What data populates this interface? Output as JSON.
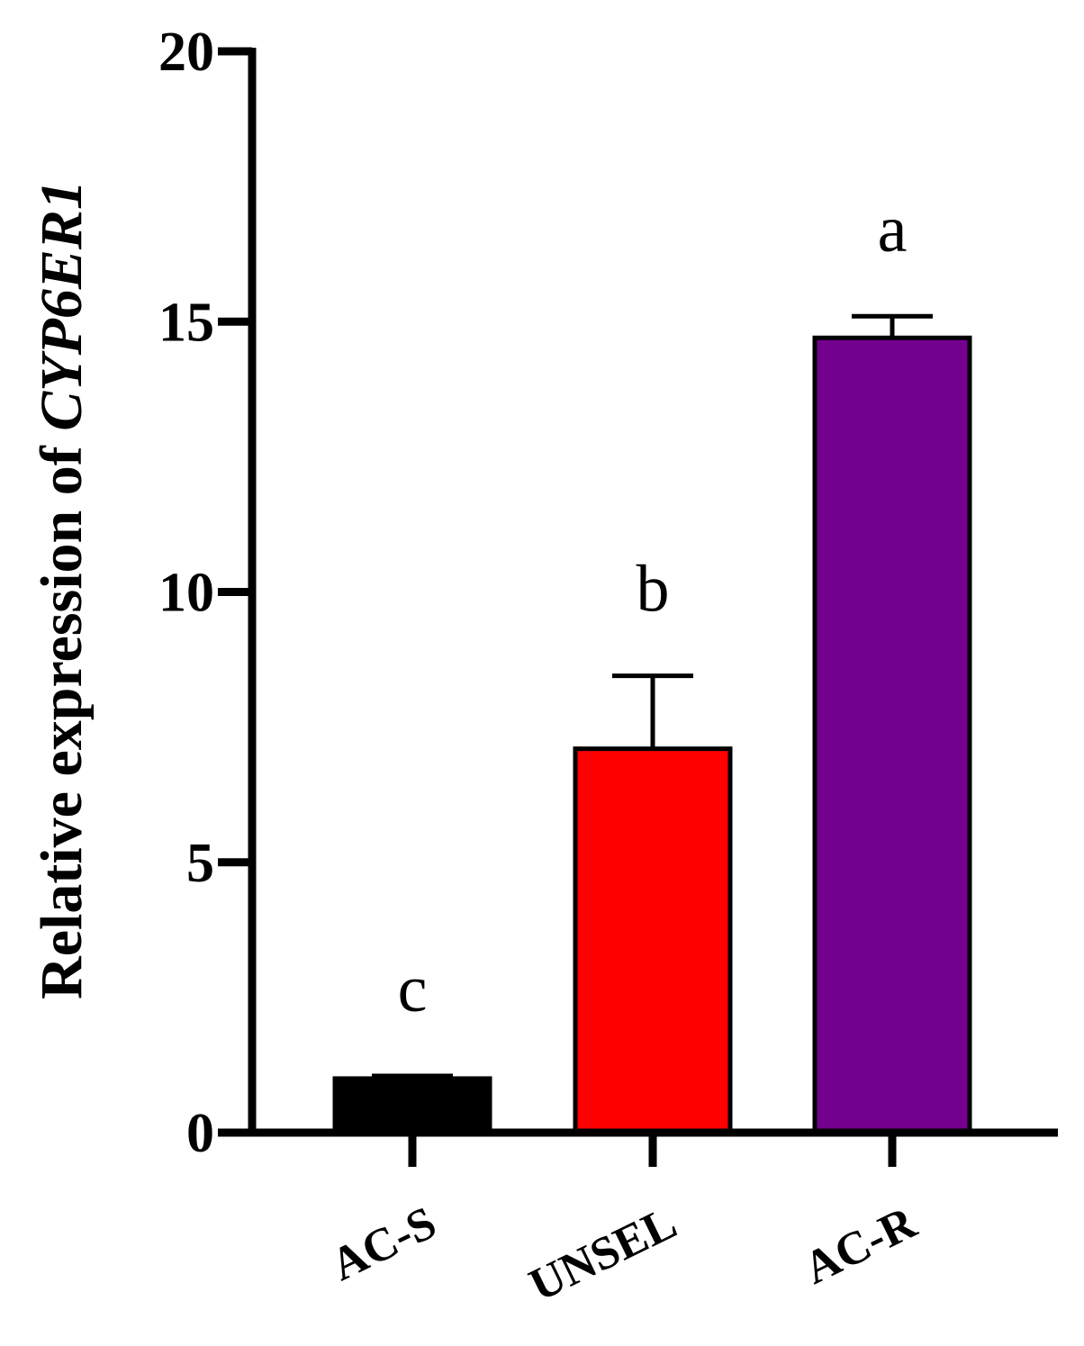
{
  "chart_data": {
    "type": "bar",
    "title": "",
    "xlabel": "",
    "ylabel": {
      "prefix": "Relative expression of ",
      "gene": "CYP6ER1"
    },
    "ylim": [
      0,
      20
    ],
    "yticks": [
      0,
      5,
      10,
      15,
      20
    ],
    "grid": false,
    "legend": "none",
    "categories": [
      "AC-S",
      "UNSEL",
      "AC-R"
    ],
    "values": [
      1.0,
      7.1,
      14.7
    ],
    "errors": [
      0.05,
      1.35,
      0.4
    ],
    "significance": [
      "c",
      "b",
      "a"
    ],
    "colors": [
      "#000000",
      "#ff0000",
      "#740090"
    ]
  }
}
